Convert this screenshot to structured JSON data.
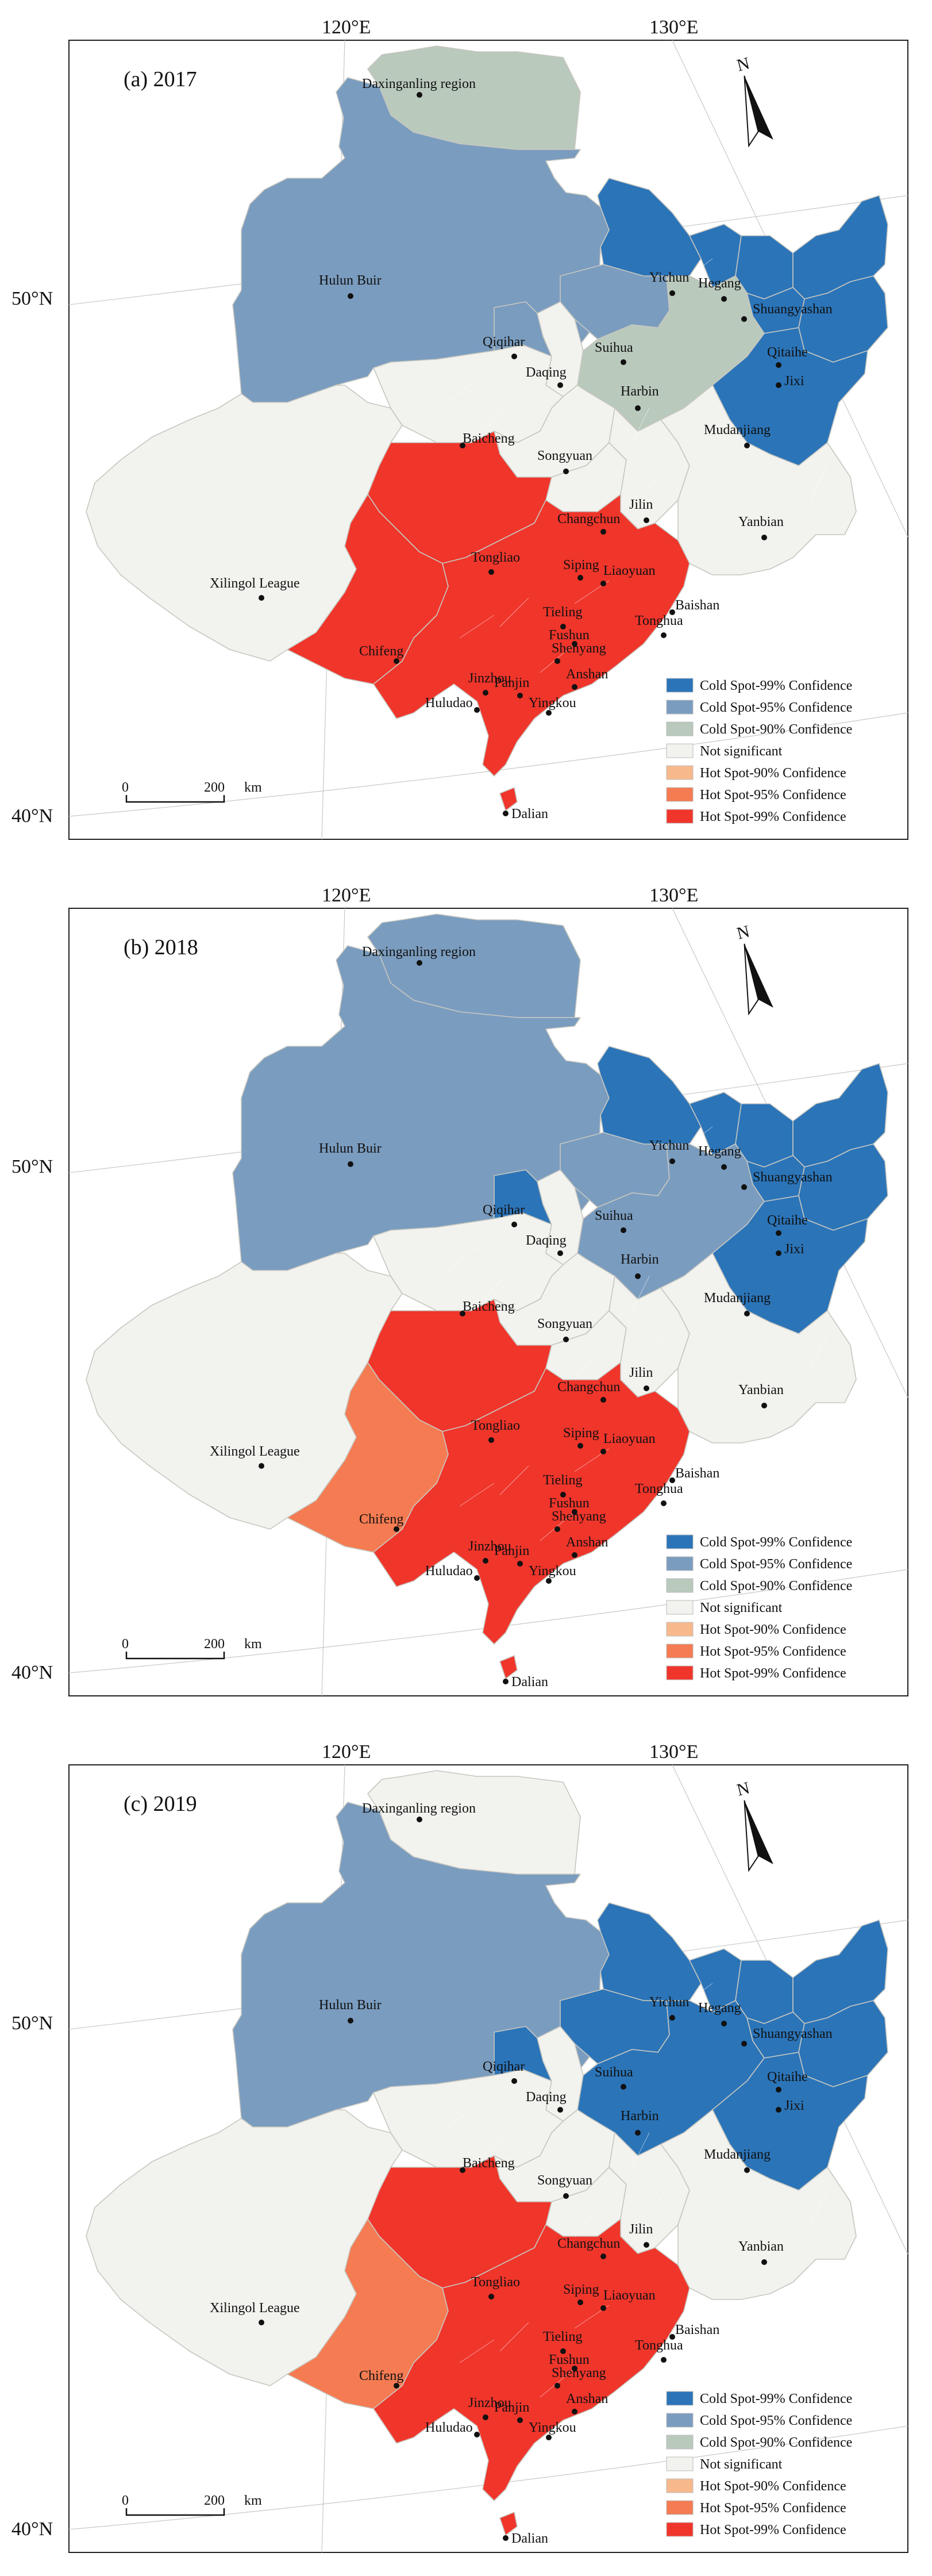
{
  "legend": [
    {
      "label": "Cold Spot-99% Confidence",
      "color": "#2b74b8"
    },
    {
      "label": "Cold Spot-95% Confidence",
      "color": "#7a9cbf"
    },
    {
      "label": "Cold Spot-90% Confidence",
      "color": "#b9c9bc"
    },
    {
      "label": "Not significant",
      "color": "#f2f2ee"
    },
    {
      "label": "Hot Spot-90% Confidence",
      "color": "#f7b98c"
    },
    {
      "label": "Hot Spot-95% Confidence",
      "color": "#f57b52"
    },
    {
      "label": "Hot Spot-99% Confidence",
      "color": "#f0352b"
    }
  ],
  "scalebar": {
    "zero": "0",
    "distance": "200",
    "unit": "km"
  },
  "north_arrow": {
    "letter": "N",
    "icon": "north-arrow-icon"
  },
  "grid_labels": {
    "lon": [
      "120°E",
      "130°E"
    ],
    "lat": [
      "50°N",
      "40°N"
    ]
  },
  "city_names": [
    "Daxinganling region",
    "Hulun Buir",
    "Yichun",
    "Hegang",
    "Shuangyashan",
    "Qiqihar",
    "Suihua",
    "Daqing",
    "Qitaihe",
    "Jixi",
    "Harbin",
    "Mudanjiang",
    "Baicheng",
    "Songyuan",
    "Jilin",
    "Changchun",
    "Yanbian",
    "Xilingol League",
    "Tongliao",
    "Siping",
    "Liaoyuan",
    "Tieling",
    "Fushun",
    "Tonghua",
    "Baishan",
    "Chifeng",
    "Shenyang",
    "Jinzhou",
    "Panjin",
    "Anshan",
    "Huludao",
    "Yingkou",
    "Dalian"
  ],
  "panels": [
    {
      "title": "(a) 2017",
      "regions": {
        "daxinganling": "Cold Spot-90% Confidence",
        "hulunbuir": "Cold Spot-95% Confidence",
        "qiqihar": "Cold Spot-95% Confidence",
        "suihua": "Cold Spot-95% Confidence",
        "daqing": "Not significant",
        "yichun": "Cold Spot-99% Confidence",
        "hegang": "Cold Spot-99% Confidence",
        "shuangyashan": "Cold Spot-99% Confidence",
        "jiamusi": "Cold Spot-99% Confidence",
        "qitaihe": "Cold Spot-99% Confidence",
        "jixi": "Cold Spot-99% Confidence",
        "harbin": "Cold Spot-90% Confidence",
        "mudanjiang": "Cold Spot-99% Confidence",
        "xilingol": "Not significant",
        "baicheng": "Not significant",
        "songyuan": "Not significant",
        "changchun": "Not significant",
        "jilin": "Not significant",
        "yanbian": "Not significant",
        "tongliao": "Hot Spot-99% Confidence",
        "chifeng": "Hot Spot-99% Confidence",
        "liaoning": "Hot Spot-99% Confidence"
      }
    },
    {
      "title": "(b) 2018",
      "regions": {
        "daxinganling": "Cold Spot-95% Confidence",
        "hulunbuir": "Cold Spot-95% Confidence",
        "qiqihar": "Cold Spot-99% Confidence",
        "suihua": "Cold Spot-95% Confidence",
        "daqing": "Not significant",
        "yichun": "Cold Spot-99% Confidence",
        "hegang": "Cold Spot-99% Confidence",
        "shuangyashan": "Cold Spot-99% Confidence",
        "jiamusi": "Cold Spot-99% Confidence",
        "qitaihe": "Cold Spot-99% Confidence",
        "jixi": "Cold Spot-99% Confidence",
        "harbin": "Cold Spot-95% Confidence",
        "mudanjiang": "Cold Spot-99% Confidence",
        "xilingol": "Not significant",
        "baicheng": "Not significant",
        "songyuan": "Not significant",
        "changchun": "Not significant",
        "jilin": "Not significant",
        "yanbian": "Not significant",
        "tongliao": "Hot Spot-99% Confidence",
        "chifeng": "Hot Spot-95% Confidence",
        "liaoning": "Hot Spot-99% Confidence"
      }
    },
    {
      "title": "(c) 2019",
      "regions": {
        "daxinganling": "Not significant",
        "hulunbuir": "Cold Spot-95% Confidence",
        "qiqihar": "Cold Spot-99% Confidence",
        "suihua": "Cold Spot-99% Confidence",
        "daqing": "Not significant",
        "yichun": "Cold Spot-99% Confidence",
        "hegang": "Cold Spot-99% Confidence",
        "shuangyashan": "Cold Spot-99% Confidence",
        "jiamusi": "Cold Spot-99% Confidence",
        "qitaihe": "Cold Spot-99% Confidence",
        "jixi": "Cold Spot-99% Confidence",
        "harbin": "Cold Spot-99% Confidence",
        "mudanjiang": "Cold Spot-99% Confidence",
        "xilingol": "Not significant",
        "baicheng": "Not significant",
        "songyuan": "Not significant",
        "changchun": "Not significant",
        "jilin": "Not significant",
        "yanbian": "Not significant",
        "tongliao": "Hot Spot-99% Confidence",
        "chifeng": "Hot Spot-95% Confidence",
        "liaoning": "Hot Spot-99% Confidence"
      }
    }
  ]
}
